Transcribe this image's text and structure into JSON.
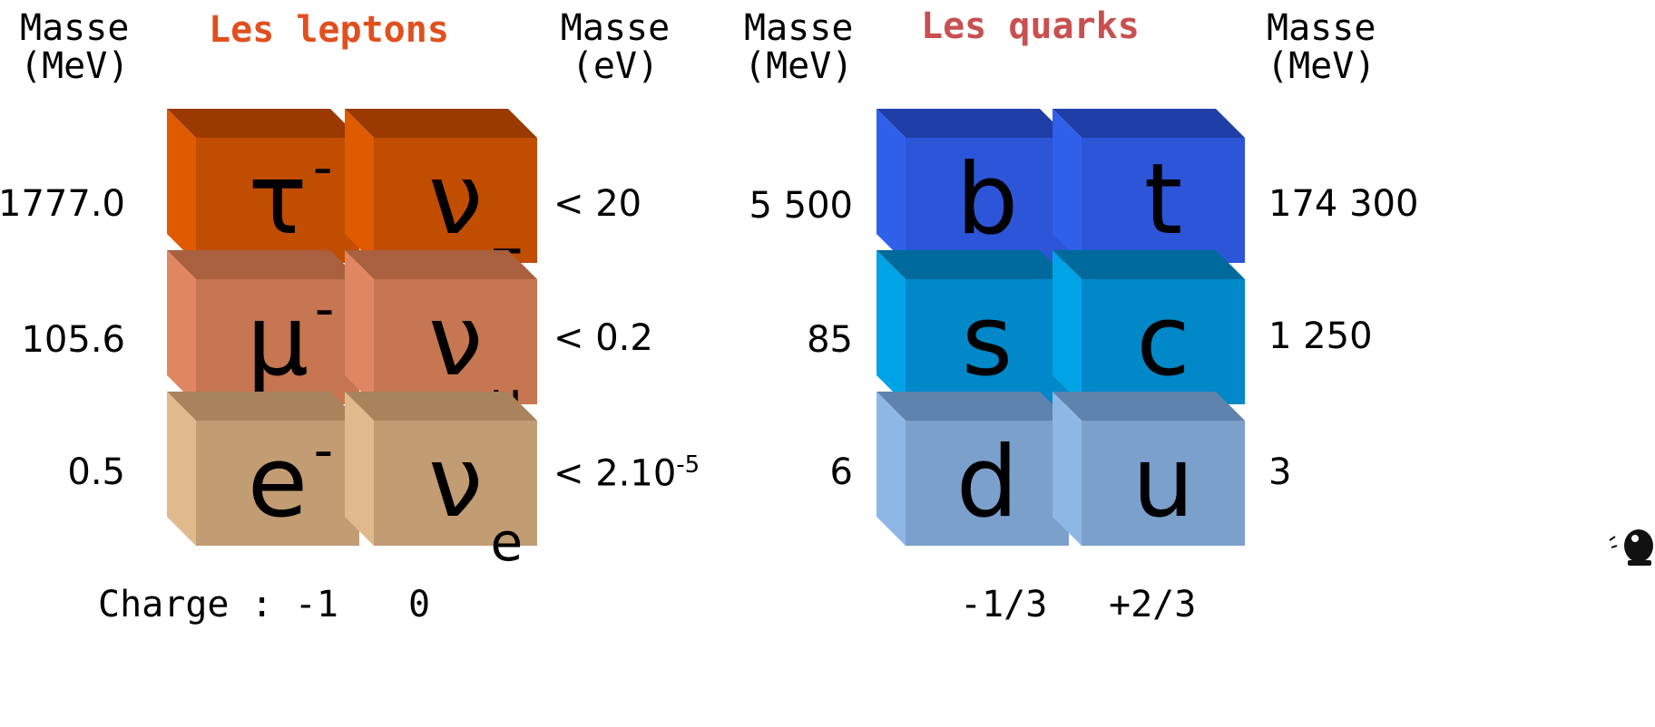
{
  "leptons": {
    "title": "Les leptons",
    "title_color": "#e0501e",
    "left_mass_header": [
      "Masse",
      "(MeV)"
    ],
    "right_mass_header": [
      "Masse",
      "(eV)"
    ],
    "rows": [
      {
        "left_mass": "1777.0",
        "charged": {
          "base": "τ",
          "sup": "-"
        },
        "neutrino": {
          "base": "ν",
          "sub": "τ"
        },
        "right_mass": "< 20",
        "colors": {
          "face": "#c14d00",
          "top": "#9a3a00",
          "side": "#e05a00"
        }
      },
      {
        "left_mass": "105.6",
        "charged": {
          "base": "μ",
          "sup": "-"
        },
        "neutrino": {
          "base": "ν",
          "sub": "μ"
        },
        "right_mass": "< 0.2",
        "colors": {
          "face": "#c67650",
          "top": "#a9603f",
          "side": "#e08762"
        }
      },
      {
        "left_mass": "0.5",
        "charged": {
          "base": "e",
          "sup": "-"
        },
        "neutrino": {
          "base": "ν",
          "sub": "e"
        },
        "right_mass_base": "< 2.10",
        "right_mass_sup": "-5",
        "colors": {
          "face": "#c29c72",
          "top": "#a8835c",
          "side": "#e0b98c"
        }
      }
    ],
    "charge_label": "Charge : -1",
    "neutrino_charge": "0"
  },
  "quarks": {
    "title": "Les quarks",
    "title_color": "#c85050",
    "left_mass_header": [
      "Masse",
      "(MeV)"
    ],
    "right_mass_header": [
      "Masse",
      "(MeV)"
    ],
    "rows": [
      {
        "left_mass": "5 500",
        "down": "b",
        "up": "t",
        "right_mass": "174 300",
        "colors": {
          "face": "#2c55d8",
          "top": "#1f3fa6",
          "side": "#2f60ea"
        }
      },
      {
        "left_mass": "85",
        "down": "s",
        "up": "c",
        "right_mass": "1 250",
        "colors": {
          "face": "#0088c8",
          "top": "#006a9c",
          "side": "#00a4e6"
        }
      },
      {
        "left_mass": "6",
        "down": "d",
        "up": "u",
        "right_mass": "3",
        "colors": {
          "face": "#7ba0cc",
          "top": "#5e83ad",
          "side": "#8fb7e6"
        }
      }
    ],
    "down_charge": "-1/3",
    "up_charge": "+2/3"
  }
}
